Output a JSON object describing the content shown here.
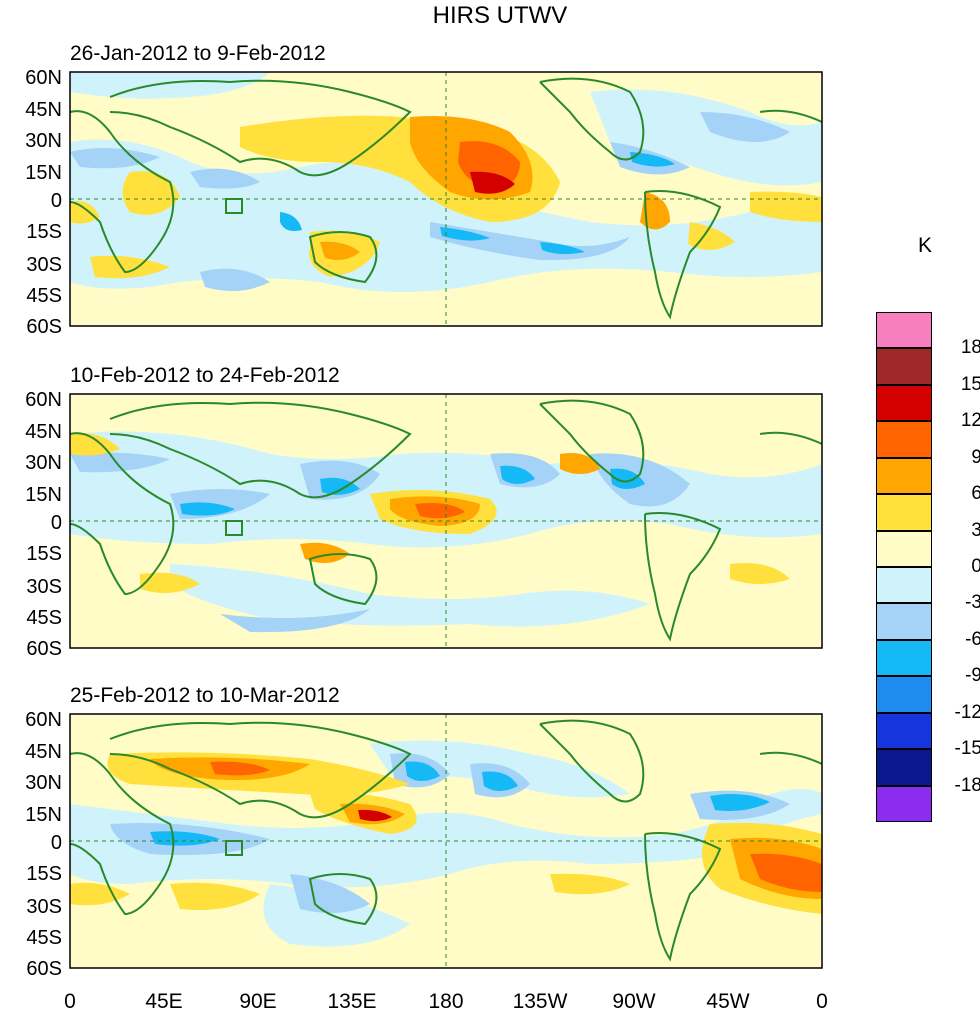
{
  "title": "HIRS UTWV",
  "panels": [
    {
      "id": "p1",
      "title": "26-Jan-2012 to 9-Feb-2012"
    },
    {
      "id": "p2",
      "title": "10-Feb-2012 to 24-Feb-2012"
    },
    {
      "id": "p3",
      "title": "25-Feb-2012 to 10-Mar-2012"
    }
  ],
  "lat_labels": [
    "60N",
    "45N",
    "30N",
    "15N",
    "0",
    "15S",
    "30S",
    "45S",
    "60S"
  ],
  "lon_labels": [
    "0",
    "45E",
    "90E",
    "135E",
    "180",
    "135W",
    "90W",
    "45W",
    "0"
  ],
  "colorbar": {
    "unit": "K",
    "labels": [
      "18",
      "15",
      "12",
      "9",
      "6",
      "3",
      "0",
      "-3",
      "-6",
      "-9",
      "-12",
      "-15",
      "-18"
    ],
    "colors": [
      "#f77fbf",
      "#a02828",
      "#d40000",
      "#ff6400",
      "#ffa600",
      "#ffe03c",
      "#fffcc8",
      "#d0f3fb",
      "#a4d3f7",
      "#14b9f6",
      "#1e8cf0",
      "#1436dc",
      "#0a1890",
      "#8c2cf0"
    ]
  },
  "map_colors": {
    "land_outline": "#2a8a2a",
    "background": "#fffcc8"
  }
}
